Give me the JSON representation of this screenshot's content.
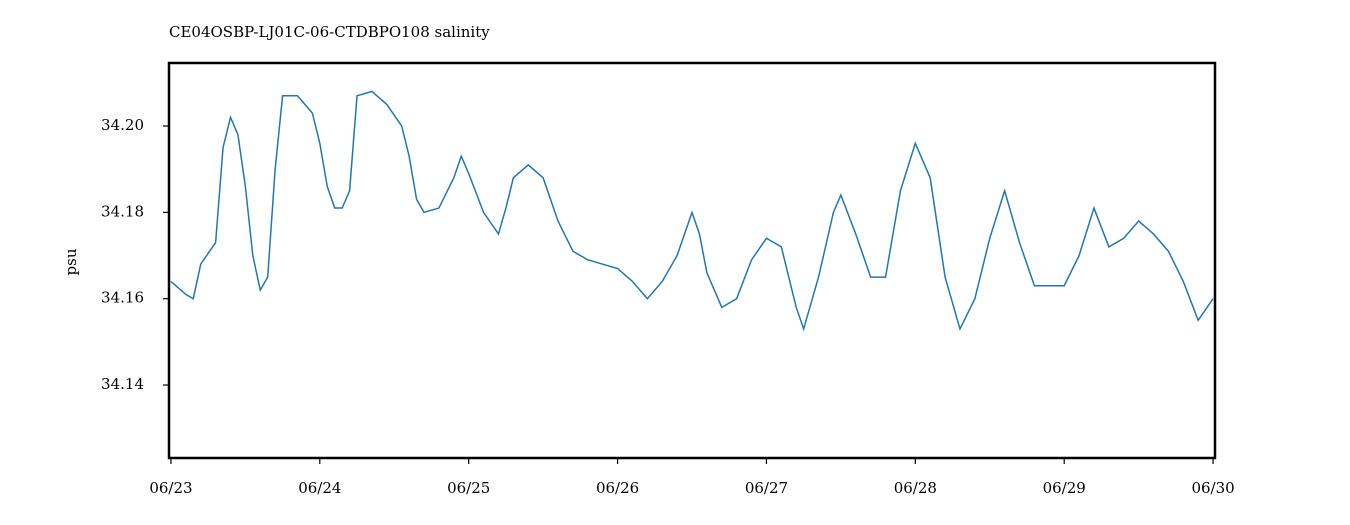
{
  "chart_data": {
    "type": "line",
    "title": "CE04OSBP-LJ01C-06-CTDBPO108 salinity",
    "ylabel": "psu",
    "x": [
      0,
      0.1,
      0.15,
      0.2,
      0.3,
      0.35,
      0.4,
      0.45,
      0.5,
      0.55,
      0.6,
      0.65,
      0.7,
      0.75,
      0.85,
      0.95,
      1.0,
      1.05,
      1.1,
      1.15,
      1.2,
      1.25,
      1.35,
      1.45,
      1.55,
      1.6,
      1.65,
      1.7,
      1.8,
      1.9,
      1.95,
      2.0,
      2.1,
      2.2,
      2.25,
      2.3,
      2.4,
      2.5,
      2.6,
      2.7,
      2.8,
      2.9,
      3.0,
      3.1,
      3.2,
      3.3,
      3.4,
      3.5,
      3.55,
      3.6,
      3.7,
      3.8,
      3.9,
      4.0,
      4.1,
      4.2,
      4.25,
      4.35,
      4.45,
      4.5,
      4.6,
      4.7,
      4.8,
      4.9,
      5.0,
      5.1,
      5.2,
      5.3,
      5.4,
      5.5,
      5.6,
      5.7,
      5.8,
      5.9,
      6.0,
      6.1,
      6.2,
      6.3,
      6.4,
      6.5,
      6.6,
      6.7,
      6.8,
      6.9,
      7.0
    ],
    "series": [
      {
        "name": "salinity",
        "color": "#1f77b4",
        "values": [
          34.164,
          34.161,
          34.16,
          34.168,
          34.173,
          34.195,
          34.202,
          34.198,
          34.186,
          34.17,
          34.162,
          34.165,
          34.19,
          34.207,
          34.207,
          34.203,
          34.196,
          34.186,
          34.181,
          34.181,
          34.185,
          34.207,
          34.208,
          34.205,
          34.2,
          34.193,
          34.183,
          34.18,
          34.181,
          34.188,
          34.193,
          34.189,
          34.18,
          34.175,
          34.181,
          34.188,
          34.191,
          34.188,
          34.178,
          34.171,
          34.169,
          34.168,
          34.167,
          34.164,
          34.16,
          34.164,
          34.17,
          34.18,
          34.175,
          34.166,
          34.158,
          34.16,
          34.169,
          34.174,
          34.172,
          34.158,
          34.153,
          34.165,
          34.18,
          34.184,
          34.175,
          34.165,
          34.165,
          34.185,
          34.196,
          34.188,
          34.165,
          34.153,
          34.16,
          34.174,
          34.185,
          34.173,
          34.163,
          34.163,
          34.163,
          34.17,
          34.181,
          34.172,
          34.174,
          34.178,
          34.175,
          34.171,
          34.164,
          34.155,
          34.16
        ]
      }
    ],
    "xlim": [
      -0.013,
      7.013
    ],
    "xticks": [
      {
        "value": 0,
        "label": "06/23"
      },
      {
        "value": 1,
        "label": "06/24"
      },
      {
        "value": 2,
        "label": "06/25"
      },
      {
        "value": 3,
        "label": "06/26"
      },
      {
        "value": 4,
        "label": "06/27"
      },
      {
        "value": 5,
        "label": "06/28"
      },
      {
        "value": 6,
        "label": "06/29"
      },
      {
        "value": 7,
        "label": "06/30"
      }
    ],
    "ylim": [
      34.1231,
      34.2146
    ],
    "yticks": [
      {
        "value": 34.14,
        "label": "34.14"
      },
      {
        "value": 34.16,
        "label": "34.16"
      },
      {
        "value": 34.18,
        "label": "34.18"
      },
      {
        "value": 34.2,
        "label": "34.20"
      }
    ],
    "grid": false
  }
}
